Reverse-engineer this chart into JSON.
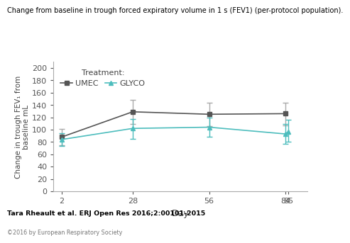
{
  "title": "Change from baseline in trough forced expiratory volume in 1 s (FEV1) (per-protocol population).",
  "ylabel": "Change in trough FEV₁ from\nbaseline mL",
  "xlabel": "Day",
  "citation": "Tara Rheault et al. ERJ Open Res 2016;2:00101-2015",
  "copyright": "©2016 by European Respiratory Society",
  "umec": {
    "label": "UMEC",
    "x": [
      2,
      28,
      56,
      84
    ],
    "y": [
      88,
      129,
      125,
      126
    ],
    "yerr_lo": [
      13,
      20,
      19,
      19
    ],
    "yerr_hi": [
      13,
      19,
      19,
      18
    ],
    "color": "#555555",
    "marker": "s"
  },
  "glyco": {
    "label": "GLYCO",
    "x": [
      2,
      28,
      56,
      84,
      85
    ],
    "y": [
      84,
      102,
      104,
      93,
      97
    ],
    "yerr_lo": [
      10,
      17,
      16,
      16,
      17
    ],
    "yerr_hi": [
      10,
      15,
      15,
      16,
      19
    ],
    "color": "#4dbdbd",
    "marker": "^"
  },
  "ylim": [
    0,
    210
  ],
  "yticks": [
    0,
    20,
    40,
    60,
    80,
    100,
    120,
    140,
    160,
    180,
    200
  ],
  "xticks": [
    2,
    28,
    56,
    84,
    85
  ],
  "xticklabels": [
    "2",
    "28",
    "56",
    "84",
    "85"
  ],
  "xlim": [
    -1,
    92
  ],
  "legend_title": "Treatment:",
  "line_color": "#aaaaaa",
  "teal_line_color": "#4dbdbd"
}
